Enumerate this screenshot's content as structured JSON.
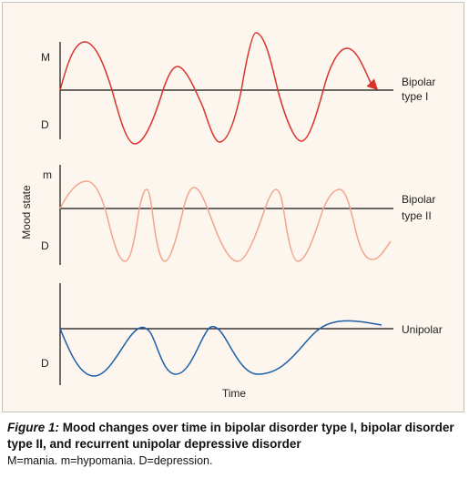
{
  "figure": {
    "y_axis_label": "Mood state",
    "x_axis_label": "Time",
    "panels": [
      {
        "id": "bipolar-1",
        "upper_label": "M",
        "lower_label": "D",
        "series_label_lines": [
          "Bipolar",
          "type I"
        ],
        "color": "#d9342b",
        "baseline_range": [
          -1,
          1
        ]
      },
      {
        "id": "bipolar-2",
        "upper_label": "m",
        "lower_label": "D",
        "series_label_lines": [
          "Bipolar",
          "type II"
        ],
        "color": "#f2a58c",
        "baseline_range": [
          -1,
          1
        ]
      },
      {
        "id": "unipolar",
        "upper_label": "",
        "lower_label": "D",
        "series_label_lines": [
          "Unipolar"
        ],
        "color": "#1d5fa8",
        "baseline_range": [
          -1,
          1
        ]
      }
    ]
  },
  "caption": {
    "figure_number": "Figure 1:",
    "title_line1": " Mood changes over time in bipolar disorder type I, bipolar disorder",
    "title_line2": "type II, and recurrent unipolar depressive disorder",
    "abbreviations": "M=mania. m=hypomania. D=depression."
  }
}
